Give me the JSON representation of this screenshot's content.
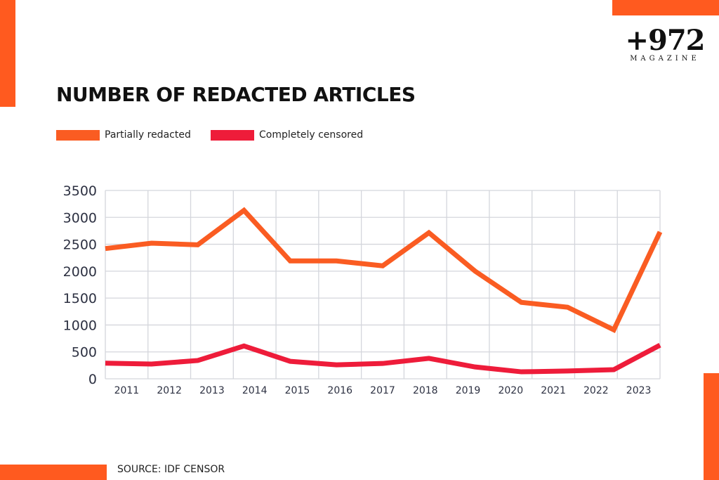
{
  "brand": {
    "logo_number": "+972",
    "logo_word": "MAGAZINE",
    "accent": "#ff5a1f"
  },
  "source": "SOURCE: IDF CENSOR",
  "chart_data": {
    "type": "line",
    "title": "NUMBER OF REDACTED ARTICLES",
    "xlabel": "",
    "ylabel": "",
    "categories": [
      "2011",
      "2012",
      "2013",
      "2014",
      "2015",
      "2016",
      "2017",
      "2018",
      "2019",
      "2020",
      "2021",
      "2022",
      "2023"
    ],
    "ylim": [
      0,
      3500
    ],
    "yticks": [
      0,
      500,
      1000,
      1500,
      2000,
      2500,
      3000,
      3500
    ],
    "grid": true,
    "legend": "top-left",
    "series": [
      {
        "name": "Partially redacted",
        "color": "#fa5c22",
        "values": [
          2420,
          2520,
          2490,
          3130,
          2190,
          2190,
          2100,
          2715,
          2000,
          1420,
          1330,
          910,
          2730
        ]
      },
      {
        "name": "Completely censored",
        "color": "#ee1c3a",
        "values": [
          290,
          275,
          340,
          610,
          325,
          260,
          285,
          380,
          220,
          130,
          145,
          170,
          625
        ]
      }
    ]
  }
}
